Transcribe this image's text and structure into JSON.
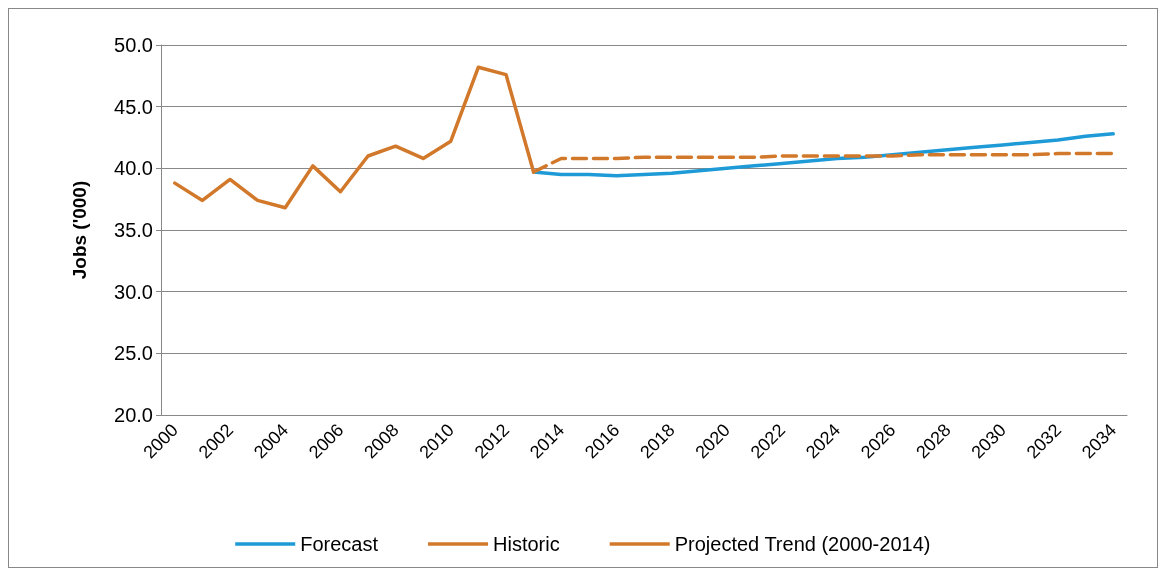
{
  "chart_data": {
    "type": "line",
    "ylabel": "Jobs ('000)",
    "categories": [
      "2000",
      null,
      "2002",
      null,
      "2004",
      null,
      "2006",
      null,
      "2008",
      null,
      "2010",
      null,
      "2012",
      null,
      "2014",
      null,
      "2016",
      null,
      "2018",
      null,
      "2020",
      null,
      "2022",
      null,
      "2024",
      null,
      "2026",
      null,
      "2028",
      null,
      "2030",
      null,
      "2032",
      null,
      "2034"
    ],
    "series": [
      {
        "name": "Forecast",
        "color": "#1e9bd7",
        "line_style": "solid",
        "values": [
          null,
          null,
          null,
          null,
          null,
          null,
          null,
          null,
          null,
          null,
          null,
          null,
          null,
          39.7,
          39.5,
          39.5,
          39.4,
          39.5,
          39.6,
          39.8,
          40.0,
          40.2,
          40.4,
          40.6,
          40.8,
          40.9,
          41.1,
          41.3,
          41.5,
          41.7,
          41.9,
          42.1,
          42.3,
          42.6,
          42.8
        ]
      },
      {
        "name": "Historic",
        "color": "#d2782a",
        "line_style": "solid",
        "values": [
          38.8,
          37.4,
          39.1,
          37.4,
          36.8,
          40.2,
          38.1,
          41.0,
          41.8,
          40.8,
          42.2,
          48.2,
          47.6,
          39.7,
          null,
          null,
          null,
          null,
          null,
          null,
          null,
          null,
          null,
          null,
          null,
          null,
          null,
          null,
          null,
          null,
          null,
          null,
          null,
          null,
          null
        ]
      },
      {
        "name": "Projected Trend (2000-2014)",
        "color": "#d2782a",
        "line_style": "dashed",
        "values": [
          null,
          null,
          null,
          null,
          null,
          null,
          null,
          null,
          null,
          null,
          null,
          null,
          null,
          39.7,
          40.8,
          40.8,
          40.8,
          40.9,
          40.9,
          40.9,
          40.9,
          40.9,
          41.0,
          41.0,
          41.0,
          41.0,
          41.0,
          41.1,
          41.1,
          41.1,
          41.1,
          41.1,
          41.2,
          41.2,
          41.2
        ]
      }
    ],
    "ylim": [
      20,
      50
    ],
    "yticks": [
      {
        "value": 20,
        "label": "20.0"
      },
      {
        "value": 25,
        "label": "25.0"
      },
      {
        "value": 30,
        "label": "30.0"
      },
      {
        "value": 35,
        "label": "35.0"
      },
      {
        "value": 40,
        "label": "40.0"
      },
      {
        "value": 45,
        "label": "45.0"
      },
      {
        "value": 50,
        "label": "50.0"
      }
    ],
    "grid": "y",
    "legend": "bottom",
    "marker": "none"
  }
}
